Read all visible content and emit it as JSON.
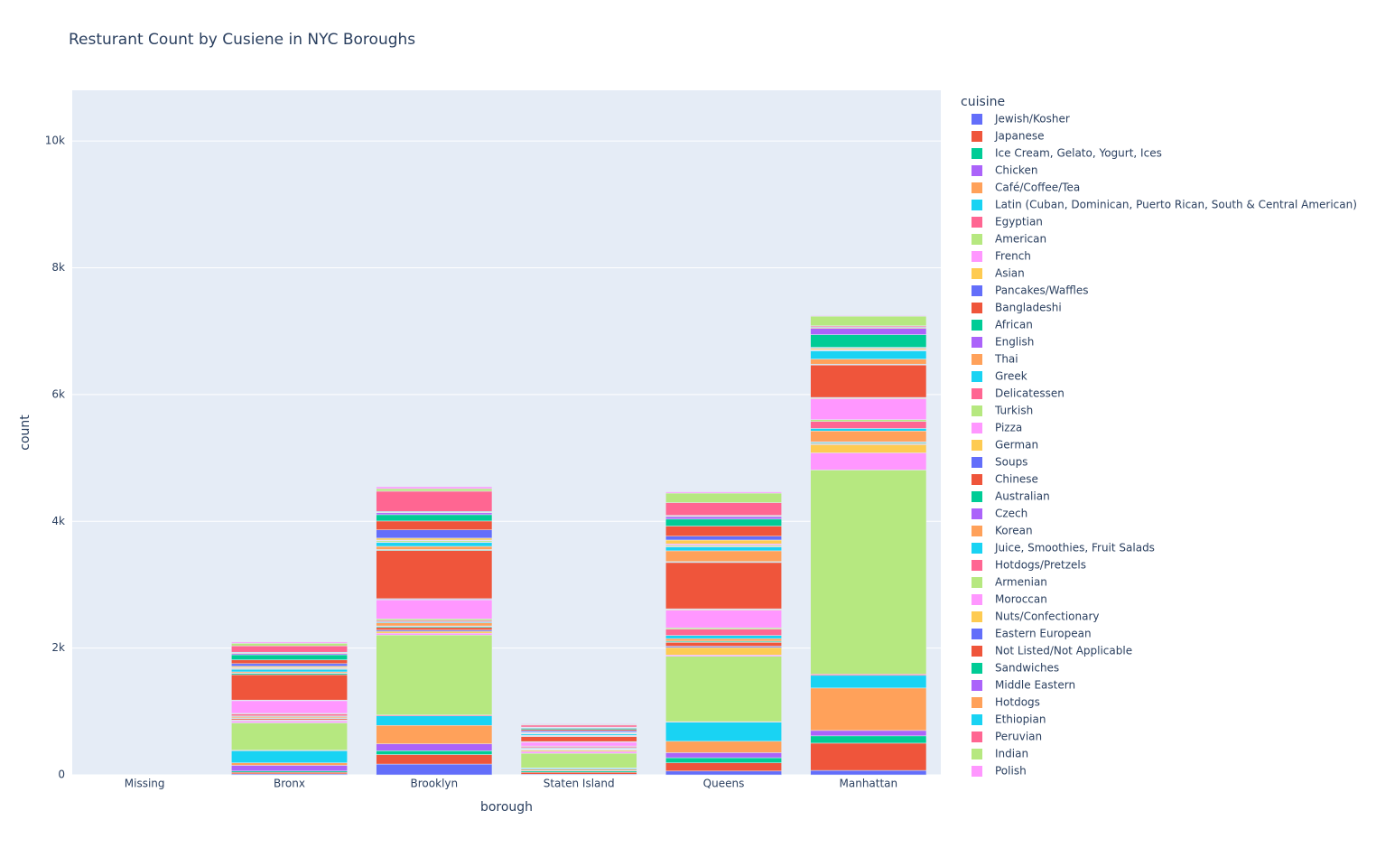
{
  "chart_data": {
    "type": "bar",
    "stacked": true,
    "title": "Resturant Count by Cusiene in NYC Boroughs",
    "x_label": "borough",
    "y_label": "count",
    "legend_title": "cuisine",
    "legend": "right",
    "grid": true,
    "categories": [
      "Missing",
      "Bronx",
      "Brooklyn",
      "Staten Island",
      "Queens",
      "Manhattan"
    ],
    "ylim": [
      0,
      10800
    ],
    "yticks": [
      0,
      {
        "value": 2000,
        "label": "2k"
      },
      {
        "value": 4000,
        "label": "4k"
      },
      {
        "value": 6000,
        "label": "6k"
      },
      {
        "value": 8000,
        "label": "8k"
      },
      {
        "value": 10000,
        "label": "10k"
      }
    ],
    "series": [
      {
        "name": "Jewish/Kosher",
        "color": "#636efa",
        "values": [
          0,
          15,
          170,
          10,
          60,
          70
        ]
      },
      {
        "name": "Japanese",
        "color": "#EF553B",
        "values": [
          0,
          25,
          150,
          30,
          130,
          430
        ]
      },
      {
        "name": "Ice Cream, Gelato, Yogurt, Ices",
        "color": "#00cc96",
        "values": [
          0,
          20,
          60,
          20,
          80,
          115
        ]
      },
      {
        "name": "Chicken",
        "color": "#ab63fa",
        "values": [
          0,
          90,
          110,
          10,
          80,
          85
        ]
      },
      {
        "name": "Café/Coffee/Tea",
        "color": "#FFA15A",
        "values": [
          0,
          40,
          290,
          20,
          180,
          670
        ]
      },
      {
        "name": "Latin (Cuban, Dominican, Puerto Rican, South & Central American)",
        "color": "#19d3f3",
        "values": [
          0,
          190,
          150,
          15,
          300,
          200
        ]
      },
      {
        "name": "Egyptian",
        "color": "#FF6692",
        "values": [
          0,
          10,
          15,
          5,
          10,
          20
        ]
      },
      {
        "name": "American",
        "color": "#B6E880",
        "values": [
          0,
          430,
          1260,
          230,
          1030,
          3220
        ]
      },
      {
        "name": "French",
        "color": "#FF97FF",
        "values": [
          0,
          30,
          30,
          30,
          20,
          270
        ]
      },
      {
        "name": "Asian",
        "color": "#FECB52",
        "values": [
          0,
          10,
          30,
          20,
          120,
          130
        ]
      },
      {
        "name": "Pancakes/Waffles",
        "color": "#636efa",
        "values": [
          0,
          5,
          20,
          5,
          20,
          10
        ]
      },
      {
        "name": "Bangladeshi",
        "color": "#EF553B",
        "values": [
          0,
          20,
          40,
          5,
          60,
          10
        ]
      },
      {
        "name": "African",
        "color": "#00cc96",
        "values": [
          0,
          10,
          15,
          5,
          15,
          15
        ]
      },
      {
        "name": "English",
        "color": "#ab63fa",
        "values": [
          0,
          5,
          10,
          5,
          5,
          10
        ]
      },
      {
        "name": "Thai",
        "color": "#FFA15A",
        "values": [
          0,
          20,
          50,
          10,
          40,
          170
        ]
      },
      {
        "name": "Greek",
        "color": "#19d3f3",
        "values": [
          0,
          10,
          15,
          10,
          50,
          40
        ]
      },
      {
        "name": "Delicatessen",
        "color": "#FF6692",
        "values": [
          0,
          30,
          20,
          20,
          100,
          110
        ]
      },
      {
        "name": "Turkish",
        "color": "#B6E880",
        "values": [
          0,
          10,
          25,
          5,
          20,
          30
        ]
      },
      {
        "name": "Pizza",
        "color": "#FF97FF",
        "values": [
          0,
          200,
          300,
          60,
          280,
          330
        ]
      },
      {
        "name": "German",
        "color": "#FECB52",
        "values": [
          0,
          5,
          10,
          5,
          10,
          10
        ]
      },
      {
        "name": "Soups",
        "color": "#636efa",
        "values": [
          0,
          5,
          10,
          5,
          10,
          10
        ]
      },
      {
        "name": "Chinese",
        "color": "#EF553B",
        "values": [
          0,
          400,
          760,
          80,
          730,
          510
        ]
      },
      {
        "name": "Australian",
        "color": "#00cc96",
        "values": [
          0,
          20,
          10,
          5,
          10,
          10
        ]
      },
      {
        "name": "Czech",
        "color": "#ab63fa",
        "values": [
          0,
          5,
          5,
          5,
          5,
          5
        ]
      },
      {
        "name": "Korean",
        "color": "#FFA15A",
        "values": [
          0,
          20,
          50,
          10,
          170,
          80
        ]
      },
      {
        "name": "Juice, Smoothies, Fruit Salads",
        "color": "#19d3f3",
        "values": [
          0,
          40,
          60,
          20,
          60,
          130
        ]
      },
      {
        "name": "Hotdogs/Pretzels",
        "color": "#FF6692",
        "values": [
          0,
          10,
          10,
          5,
          10,
          5
        ]
      },
      {
        "name": "Armenian",
        "color": "#B6E880",
        "values": [
          0,
          10,
          20,
          10,
          20,
          5
        ]
      },
      {
        "name": "Moroccan",
        "color": "#FF97FF",
        "values": [
          0,
          10,
          10,
          5,
          20,
          10
        ]
      },
      {
        "name": "Nuts/Confectionary",
        "color": "#FECB52",
        "values": [
          0,
          20,
          30,
          10,
          60,
          20
        ]
      },
      {
        "name": "Eastern European",
        "color": "#636efa",
        "values": [
          0,
          40,
          130,
          20,
          60,
          10
        ]
      },
      {
        "name": "Not Listed/Not Applicable",
        "color": "#EF553B",
        "values": [
          0,
          60,
          140,
          20,
          160,
          5
        ]
      },
      {
        "name": "Sandwiches",
        "color": "#00cc96",
        "values": [
          0,
          80,
          100,
          20,
          110,
          200
        ]
      },
      {
        "name": "Middle Eastern",
        "color": "#ab63fa",
        "values": [
          0,
          20,
          30,
          10,
          40,
          100
        ]
      },
      {
        "name": "Hotdogs",
        "color": "#FFA15A",
        "values": [
          0,
          10,
          10,
          5,
          10,
          15
        ]
      },
      {
        "name": "Ethiopian",
        "color": "#19d3f3",
        "values": [
          0,
          10,
          10,
          5,
          10,
          10
        ]
      },
      {
        "name": "Peruvian",
        "color": "#FF6692",
        "values": [
          0,
          100,
          320,
          30,
          200,
          15
        ]
      },
      {
        "name": "Indian",
        "color": "#B6E880",
        "values": [
          0,
          40,
          40,
          10,
          150,
          150
        ]
      },
      {
        "name": "Polish",
        "color": "#FF97FF",
        "values": [
          0,
          20,
          30,
          10,
          20,
          10
        ]
      }
    ]
  }
}
